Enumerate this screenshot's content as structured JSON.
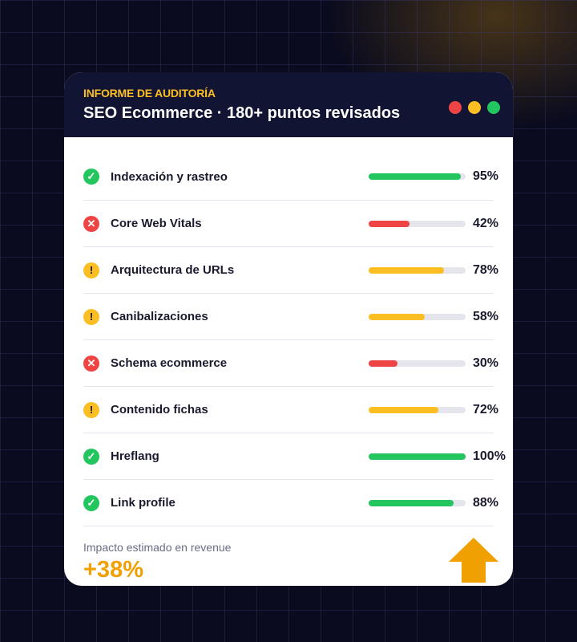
{
  "header": {
    "kicker": "INFORME DE AUDITORÍA",
    "title": "SEO Ecommerce · 180+ puntos revisados"
  },
  "window_dots": [
    "#ef4444",
    "#fbbf24",
    "#22c55e"
  ],
  "status_colors": {
    "ok": "#22c55e",
    "fail": "#ef4444",
    "warn": "#fbbf24"
  },
  "items": [
    {
      "label": "Indexación y rastreo",
      "status": "ok",
      "value": 95,
      "pct": "95%"
    },
    {
      "label": "Core Web Vitals",
      "status": "fail",
      "value": 42,
      "pct": "42%"
    },
    {
      "label": "Arquitectura de URLs",
      "status": "warn",
      "value": 78,
      "pct": "78%"
    },
    {
      "label": "Canibalizaciones",
      "status": "warn",
      "value": 58,
      "pct": "58%"
    },
    {
      "label": "Schema ecommerce",
      "status": "fail",
      "value": 30,
      "pct": "30%"
    },
    {
      "label": "Contenido fichas",
      "status": "warn",
      "value": 72,
      "pct": "72%"
    },
    {
      "label": "Hreflang",
      "status": "ok",
      "value": 100,
      "pct": "100%"
    },
    {
      "label": "Link profile",
      "status": "ok",
      "value": 88,
      "pct": "88%"
    }
  ],
  "footer": {
    "label": "Impacto estimado en revenue",
    "value": "+38%",
    "icon": "arrow-up-icon",
    "accent": "#f0a000"
  }
}
